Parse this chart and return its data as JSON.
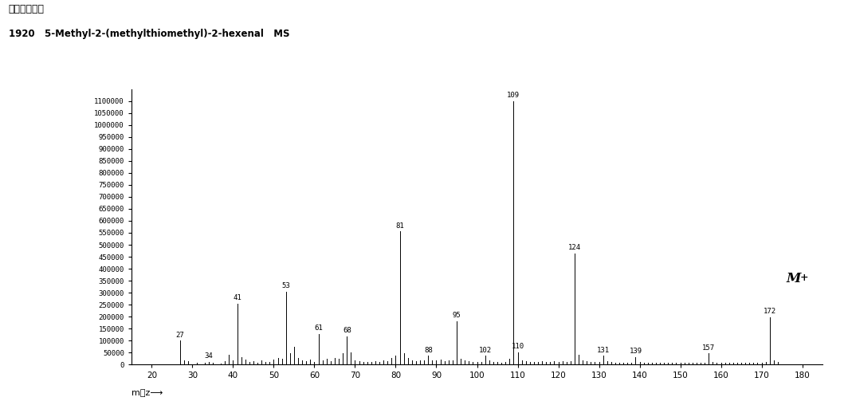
{
  "title_line1": "アバンダンス",
  "title_line2": "1920   5-Methyl-2-(methylthiomethyl)-2-hexenal   MS",
  "xlim": [
    15,
    185
  ],
  "ylim": [
    0,
    1150000
  ],
  "yticks": [
    0,
    50000,
    100000,
    150000,
    200000,
    250000,
    300000,
    350000,
    400000,
    450000,
    500000,
    550000,
    600000,
    650000,
    700000,
    750000,
    800000,
    850000,
    900000,
    950000,
    1000000,
    1050000,
    1100000
  ],
  "xticks": [
    20,
    30,
    40,
    50,
    60,
    70,
    80,
    90,
    100,
    110,
    120,
    130,
    140,
    150,
    160,
    170,
    180
  ],
  "peaks": [
    [
      27,
      100000
    ],
    [
      28,
      18000
    ],
    [
      29,
      14000
    ],
    [
      31,
      7000
    ],
    [
      33,
      6000
    ],
    [
      34,
      11000
    ],
    [
      35,
      7000
    ],
    [
      37,
      5000
    ],
    [
      38,
      14000
    ],
    [
      39,
      42000
    ],
    [
      40,
      18000
    ],
    [
      41,
      255000
    ],
    [
      42,
      32000
    ],
    [
      43,
      22000
    ],
    [
      44,
      9000
    ],
    [
      45,
      13000
    ],
    [
      46,
      7000
    ],
    [
      47,
      16000
    ],
    [
      48,
      9000
    ],
    [
      49,
      11000
    ],
    [
      50,
      19000
    ],
    [
      51,
      28000
    ],
    [
      52,
      23000
    ],
    [
      53,
      305000
    ],
    [
      54,
      47000
    ],
    [
      55,
      75000
    ],
    [
      56,
      28000
    ],
    [
      57,
      18000
    ],
    [
      58,
      13000
    ],
    [
      59,
      22000
    ],
    [
      60,
      11000
    ],
    [
      61,
      128000
    ],
    [
      62,
      16000
    ],
    [
      63,
      23000
    ],
    [
      64,
      13000
    ],
    [
      65,
      28000
    ],
    [
      66,
      23000
    ],
    [
      67,
      47000
    ],
    [
      68,
      118000
    ],
    [
      69,
      52000
    ],
    [
      70,
      18000
    ],
    [
      71,
      13000
    ],
    [
      72,
      11000
    ],
    [
      73,
      9000
    ],
    [
      74,
      11000
    ],
    [
      75,
      13000
    ],
    [
      76,
      9000
    ],
    [
      77,
      18000
    ],
    [
      78,
      13000
    ],
    [
      79,
      28000
    ],
    [
      80,
      37000
    ],
    [
      81,
      555000
    ],
    [
      82,
      47000
    ],
    [
      83,
      28000
    ],
    [
      84,
      18000
    ],
    [
      85,
      13000
    ],
    [
      86,
      16000
    ],
    [
      87,
      18000
    ],
    [
      88,
      37000
    ],
    [
      89,
      18000
    ],
    [
      90,
      16000
    ],
    [
      91,
      20000
    ],
    [
      92,
      13000
    ],
    [
      93,
      18000
    ],
    [
      94,
      16000
    ],
    [
      95,
      182000
    ],
    [
      96,
      23000
    ],
    [
      97,
      18000
    ],
    [
      98,
      13000
    ],
    [
      99,
      11000
    ],
    [
      100,
      9000
    ],
    [
      101,
      11000
    ],
    [
      102,
      37000
    ],
    [
      103,
      16000
    ],
    [
      104,
      11000
    ],
    [
      105,
      9000
    ],
    [
      106,
      7000
    ],
    [
      107,
      11000
    ],
    [
      108,
      23000
    ],
    [
      109,
      1100000
    ],
    [
      110,
      52000
    ],
    [
      111,
      18000
    ],
    [
      112,
      13000
    ],
    [
      113,
      11000
    ],
    [
      114,
      9000
    ],
    [
      115,
      11000
    ],
    [
      116,
      13000
    ],
    [
      117,
      11000
    ],
    [
      118,
      9000
    ],
    [
      119,
      13000
    ],
    [
      120,
      11000
    ],
    [
      121,
      13000
    ],
    [
      122,
      11000
    ],
    [
      123,
      13000
    ],
    [
      124,
      465000
    ],
    [
      125,
      42000
    ],
    [
      126,
      18000
    ],
    [
      127,
      13000
    ],
    [
      128,
      11000
    ],
    [
      129,
      9000
    ],
    [
      130,
      11000
    ],
    [
      131,
      37000
    ],
    [
      132,
      13000
    ],
    [
      133,
      9000
    ],
    [
      134,
      7000
    ],
    [
      135,
      7000
    ],
    [
      136,
      7000
    ],
    [
      137,
      7000
    ],
    [
      138,
      7000
    ],
    [
      139,
      32000
    ],
    [
      140,
      11000
    ],
    [
      141,
      7000
    ],
    [
      142,
      7000
    ],
    [
      143,
      7000
    ],
    [
      144,
      7000
    ],
    [
      145,
      7000
    ],
    [
      146,
      7000
    ],
    [
      147,
      7000
    ],
    [
      148,
      7000
    ],
    [
      149,
      7000
    ],
    [
      150,
      7000
    ],
    [
      151,
      7000
    ],
    [
      152,
      7000
    ],
    [
      153,
      7000
    ],
    [
      154,
      7000
    ],
    [
      155,
      7000
    ],
    [
      156,
      7000
    ],
    [
      157,
      47000
    ],
    [
      158,
      9000
    ],
    [
      159,
      7000
    ],
    [
      160,
      7000
    ],
    [
      161,
      7000
    ],
    [
      162,
      7000
    ],
    [
      163,
      7000
    ],
    [
      164,
      7000
    ],
    [
      165,
      7000
    ],
    [
      166,
      7000
    ],
    [
      167,
      7000
    ],
    [
      168,
      7000
    ],
    [
      169,
      7000
    ],
    [
      170,
      7000
    ],
    [
      171,
      11000
    ],
    [
      172,
      198000
    ],
    [
      173,
      18000
    ],
    [
      174,
      9000
    ]
  ],
  "labeled_peaks": [
    27,
    34,
    41,
    53,
    61,
    68,
    81,
    88,
    95,
    102,
    109,
    110,
    124,
    131,
    139,
    157,
    172
  ],
  "bar_color": "#000000",
  "background_color": "#ffffff"
}
